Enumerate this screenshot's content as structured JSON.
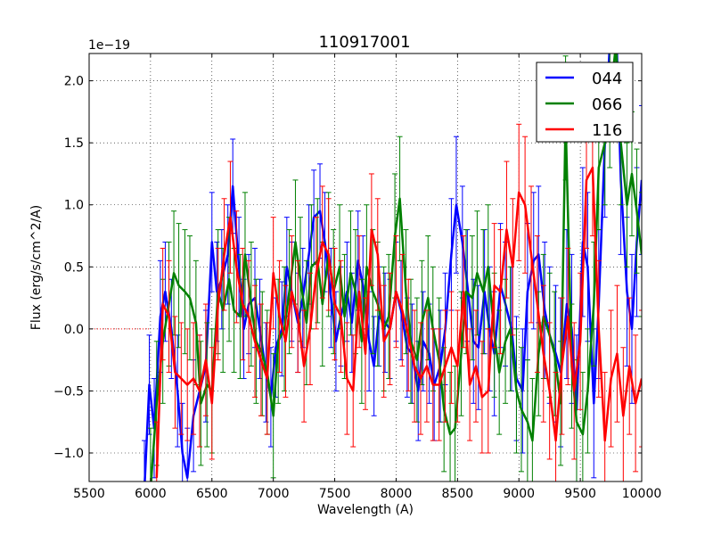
{
  "chart_data": {
    "type": "line",
    "title": "110917001",
    "xlabel": "Wavelength (A)",
    "ylabel": "Flux (erg/s/cm^2/A)",
    "offset_label": "1e−19",
    "y_scale": 1e-19,
    "xlim": [
      5500,
      10000
    ],
    "ylim": [
      -1.23,
      2.22
    ],
    "x_ticks": [
      5500,
      6000,
      6500,
      7000,
      7500,
      8000,
      8500,
      9000,
      9500,
      10000
    ],
    "x_tick_labels": [
      "5500",
      "6000",
      "6500",
      "7000",
      "7500",
      "8000",
      "8500",
      "9000",
      "9500",
      "10000"
    ],
    "y_ticks": [
      -1.0,
      -0.5,
      0.0,
      0.5,
      1.0,
      1.5,
      2.0
    ],
    "y_tick_labels": [
      "−1.0",
      "−0.5",
      "0.0",
      "0.5",
      "1.0",
      "1.5",
      "2.0"
    ],
    "grid": true,
    "legend_position": "top-right",
    "zero_line": {
      "x_start": 5500,
      "x_end": 6000,
      "color": "#ff0000",
      "style": "dotted"
    },
    "series": [
      {
        "name": "044",
        "color": "#0000ff",
        "x": [
          5950,
          5990,
          6030,
          6080,
          6120,
          6170,
          6220,
          6260,
          6300,
          6350,
          6400,
          6450,
          6500,
          6540,
          6580,
          6630,
          6670,
          6720,
          6760,
          6800,
          6850,
          6890,
          6940,
          6980,
          7020,
          7070,
          7110,
          7150,
          7200,
          7240,
          7290,
          7330,
          7380,
          7420,
          7470,
          7510,
          7550,
          7600,
          7640,
          7690,
          7730,
          7780,
          7820,
          7860,
          7910,
          7950,
          8000,
          8040,
          8090,
          8130,
          8180,
          8220,
          8270,
          8310,
          8360,
          8400,
          8450,
          8490,
          8540,
          8580,
          8630,
          8670,
          8720,
          8760,
          8800,
          8850,
          8890,
          8940,
          8980,
          9030,
          9070,
          9120,
          9160,
          9210,
          9250,
          9300,
          9340,
          9390,
          9430,
          9470,
          9520,
          9560,
          9610,
          9650,
          9700,
          9740,
          9790,
          9830,
          9880,
          9920,
          9960,
          10000
        ],
        "y": [
          -1.3,
          -0.45,
          -0.8,
          0.1,
          0.3,
          0.0,
          -0.5,
          -1.0,
          -1.2,
          -0.7,
          -0.5,
          -0.3,
          0.7,
          0.3,
          0.4,
          0.6,
          1.15,
          0.5,
          0.0,
          0.2,
          0.25,
          0.0,
          -0.35,
          -0.55,
          -0.15,
          0.0,
          0.5,
          0.3,
          0.05,
          0.25,
          0.6,
          0.9,
          0.95,
          0.7,
          0.25,
          -0.1,
          0.1,
          0.3,
          0.05,
          0.55,
          0.35,
          -0.1,
          -0.3,
          0.1,
          0.05,
          0.0,
          0.3,
          0.15,
          -0.15,
          -0.2,
          -0.5,
          -0.1,
          -0.2,
          -0.45,
          -0.3,
          0.0,
          0.6,
          1.0,
          0.7,
          0.35,
          -0.1,
          -0.15,
          0.3,
          0.0,
          -0.2,
          0.35,
          0.2,
          0.0,
          -0.4,
          -0.5,
          0.3,
          0.55,
          0.6,
          0.15,
          -0.05,
          -0.2,
          -0.35,
          0.2,
          0.0,
          -0.65,
          0.7,
          0.5,
          -0.6,
          0.2,
          1.5,
          2.3,
          2.5,
          1.2,
          0.3,
          0.0,
          0.7,
          1.2
        ],
        "errors": [
          0.4,
          0.4,
          0.4,
          0.45,
          0.4,
          0.4,
          0.45,
          0.4,
          0.4,
          0.45,
          0.45,
          0.45,
          0.4,
          0.4,
          0.4,
          0.4,
          0.38,
          0.4,
          0.4,
          0.4,
          0.4,
          0.4,
          0.4,
          0.4,
          0.4,
          0.38,
          0.4,
          0.4,
          0.4,
          0.4,
          0.4,
          0.38,
          0.38,
          0.4,
          0.4,
          0.4,
          0.4,
          0.4,
          0.4,
          0.4,
          0.4,
          0.4,
          0.4,
          0.4,
          0.4,
          0.4,
          0.4,
          0.4,
          0.4,
          0.4,
          0.4,
          0.4,
          0.4,
          0.45,
          0.45,
          0.45,
          0.45,
          0.55,
          0.45,
          0.45,
          0.5,
          0.5,
          0.5,
          0.5,
          0.5,
          0.5,
          0.5,
          0.5,
          0.5,
          0.5,
          0.55,
          0.55,
          0.55,
          0.55,
          0.55,
          0.55,
          0.6,
          0.6,
          0.6,
          0.6,
          0.6,
          0.6,
          0.6,
          0.6,
          0.6,
          0.6,
          0.6,
          0.6,
          0.6,
          0.6,
          0.6,
          0.6
        ]
      },
      {
        "name": "066",
        "color": "#008000",
        "x": [
          6000,
          6050,
          6100,
          6150,
          6190,
          6230,
          6280,
          6320,
          6370,
          6410,
          6460,
          6500,
          6550,
          6590,
          6640,
          6680,
          6730,
          6770,
          6820,
          6860,
          6910,
          6950,
          7000,
          7040,
          7090,
          7130,
          7180,
          7220,
          7270,
          7310,
          7360,
          7400,
          7450,
          7490,
          7540,
          7580,
          7630,
          7670,
          7720,
          7760,
          7810,
          7850,
          7900,
          7940,
          7990,
          8030,
          8080,
          8120,
          8170,
          8210,
          8260,
          8300,
          8350,
          8390,
          8440,
          8480,
          8530,
          8570,
          8620,
          8660,
          8710,
          8750,
          8800,
          8840,
          8890,
          8930,
          8980,
          9020,
          9070,
          9110,
          9160,
          9200,
          9250,
          9290,
          9340,
          9380,
          9430,
          9470,
          9520,
          9560,
          9610,
          9650,
          9700,
          9740,
          9790,
          9830,
          9880,
          9920,
          9960,
          10000
        ],
        "y": [
          -1.3,
          -0.6,
          -0.1,
          0.2,
          0.45,
          0.35,
          0.3,
          0.25,
          0.05,
          -0.6,
          -0.45,
          -0.5,
          0.3,
          0.15,
          0.4,
          0.15,
          0.1,
          0.6,
          0.2,
          -0.1,
          -0.2,
          -0.35,
          -0.7,
          -0.1,
          0.0,
          0.3,
          0.7,
          0.4,
          0.05,
          0.5,
          0.55,
          0.2,
          0.6,
          0.3,
          0.5,
          0.1,
          0.45,
          0.3,
          -0.1,
          0.5,
          0.3,
          0.2,
          0.0,
          0.1,
          0.75,
          1.05,
          0.3,
          -0.1,
          -0.25,
          0.05,
          0.25,
          0.0,
          -0.25,
          -0.65,
          -0.85,
          -0.8,
          -0.2,
          0.3,
          0.25,
          0.45,
          0.3,
          0.5,
          -0.05,
          -0.35,
          -0.1,
          0.0,
          -0.5,
          -0.65,
          -0.75,
          -0.9,
          -0.2,
          0.1,
          -0.05,
          -0.2,
          -0.6,
          1.7,
          -0.3,
          -0.75,
          -0.85,
          -0.5,
          0.2,
          1.3,
          1.5,
          1.8,
          2.3,
          1.5,
          1.0,
          1.25,
          0.95,
          0.6
        ],
        "errors": [
          0.5,
          0.5,
          0.5,
          0.5,
          0.5,
          0.5,
          0.5,
          0.5,
          0.5,
          0.5,
          0.5,
          0.5,
          0.5,
          0.5,
          0.5,
          0.5,
          0.5,
          0.5,
          0.5,
          0.5,
          0.5,
          0.5,
          0.5,
          0.5,
          0.5,
          0.5,
          0.5,
          0.5,
          0.5,
          0.5,
          0.5,
          0.5,
          0.5,
          0.5,
          0.5,
          0.5,
          0.5,
          0.5,
          0.5,
          0.5,
          0.5,
          0.5,
          0.5,
          0.5,
          0.5,
          0.5,
          0.5,
          0.5,
          0.5,
          0.5,
          0.5,
          0.5,
          0.5,
          0.5,
          0.5,
          0.5,
          0.5,
          0.5,
          0.5,
          0.5,
          0.5,
          0.5,
          0.5,
          0.5,
          0.5,
          0.5,
          0.5,
          0.5,
          0.5,
          0.5,
          0.5,
          0.5,
          0.5,
          0.5,
          0.5,
          0.5,
          0.5,
          0.5,
          0.5,
          0.5,
          0.5,
          0.5,
          0.5,
          0.5,
          0.5,
          0.5,
          0.5,
          0.5,
          0.5,
          0.5
        ]
      },
      {
        "name": "116",
        "color": "#ff0000",
        "x": [
          6050,
          6100,
          6150,
          6200,
          6250,
          6300,
          6350,
          6400,
          6450,
          6500,
          6550,
          6600,
          6650,
          6700,
          6750,
          6800,
          6850,
          6900,
          6950,
          7000,
          7050,
          7100,
          7150,
          7200,
          7250,
          7300,
          7350,
          7400,
          7450,
          7500,
          7550,
          7600,
          7650,
          7700,
          7750,
          7800,
          7850,
          7900,
          7950,
          8000,
          8050,
          8100,
          8150,
          8200,
          8250,
          8300,
          8350,
          8400,
          8450,
          8500,
          8550,
          8600,
          8650,
          8700,
          8750,
          8800,
          8850,
          8900,
          8950,
          9000,
          9050,
          9100,
          9150,
          9200,
          9250,
          9300,
          9350,
          9400,
          9450,
          9500,
          9550,
          9600,
          9650,
          9700,
          9750,
          9800,
          9850,
          9900,
          9950,
          10000
        ],
        "y": [
          -1.2,
          0.2,
          0.1,
          -0.35,
          -0.4,
          -0.45,
          -0.4,
          -0.5,
          -0.25,
          -0.6,
          0.2,
          0.6,
          0.9,
          0.5,
          0.2,
          0.1,
          -0.1,
          -0.25,
          -0.4,
          0.45,
          0.1,
          -0.1,
          0.3,
          0.1,
          -0.3,
          0.0,
          0.45,
          0.7,
          0.6,
          0.2,
          0.1,
          -0.4,
          -0.5,
          0.3,
          -0.2,
          0.8,
          0.6,
          -0.1,
          0.0,
          0.3,
          0.15,
          -0.05,
          -0.3,
          -0.4,
          -0.3,
          -0.45,
          -0.45,
          -0.3,
          -0.15,
          -0.3,
          0.3,
          -0.45,
          -0.3,
          -0.55,
          -0.5,
          0.35,
          0.3,
          0.8,
          0.5,
          1.1,
          1.0,
          0.6,
          0.2,
          -0.2,
          -0.5,
          -0.9,
          -0.3,
          0.1,
          -0.5,
          -0.1,
          1.2,
          1.3,
          0.0,
          -0.9,
          -0.4,
          -0.2,
          -0.7,
          -0.3,
          -0.6,
          -0.4
        ],
        "errors": [
          0.45,
          0.45,
          0.45,
          0.45,
          0.45,
          0.45,
          0.45,
          0.45,
          0.45,
          0.45,
          0.45,
          0.45,
          0.45,
          0.45,
          0.45,
          0.45,
          0.45,
          0.45,
          0.45,
          0.45,
          0.45,
          0.45,
          0.45,
          0.45,
          0.45,
          0.45,
          0.45,
          0.45,
          0.45,
          0.45,
          0.45,
          0.45,
          0.45,
          0.45,
          0.45,
          0.45,
          0.45,
          0.45,
          0.45,
          0.45,
          0.45,
          0.45,
          0.45,
          0.45,
          0.45,
          0.45,
          0.45,
          0.45,
          0.45,
          0.45,
          0.45,
          0.45,
          0.45,
          0.45,
          0.5,
          0.5,
          0.5,
          0.55,
          0.55,
          0.55,
          0.55,
          0.55,
          0.55,
          0.55,
          0.55,
          0.55,
          0.55,
          0.55,
          0.55,
          0.55,
          0.55,
          0.55,
          0.55,
          0.55,
          0.55,
          0.55,
          0.55,
          0.55,
          0.55,
          0.55
        ]
      }
    ]
  }
}
